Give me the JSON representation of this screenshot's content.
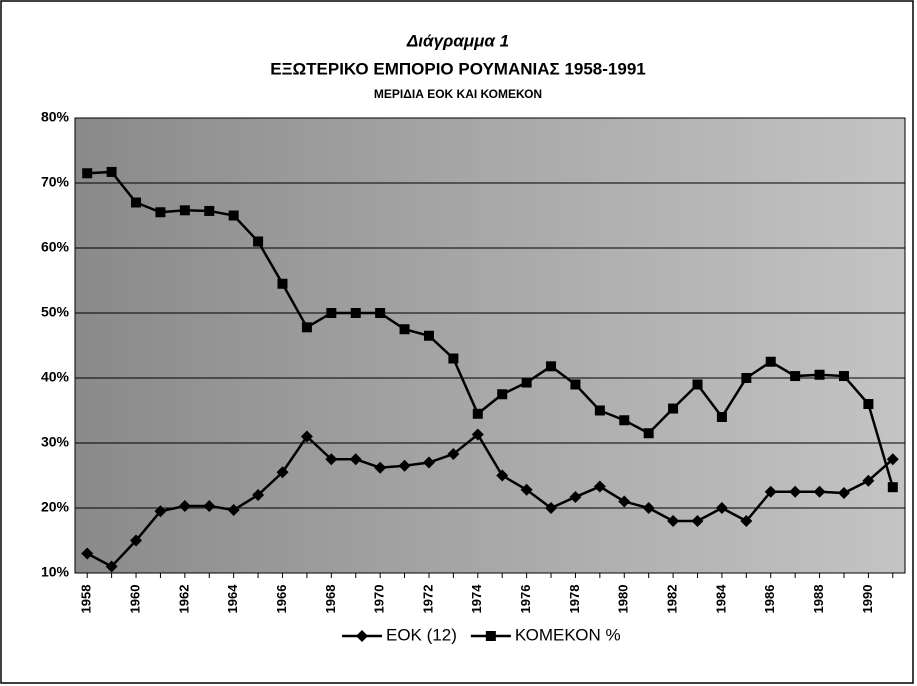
{
  "chart_data": {
    "type": "line",
    "title": "Διάγραμμα 1",
    "subtitle": "ΕΞΩΤΕΡΙΚΟ ΕΜΠΟΡΙΟ ΡΟΥΜΑΝΙΑΣ 1958-1991",
    "caption": "ΜΕΡΙΔΙΑ ΕΟΚ ΚΑΙ ΚΟΜΕΚΟΝ",
    "categories": [
      "1958",
      null,
      "1960",
      null,
      "1962",
      null,
      "1964",
      null,
      "1966",
      null,
      "1968",
      null,
      "1970",
      null,
      "1972",
      null,
      "1974",
      null,
      "1976",
      null,
      "1978",
      null,
      "1980",
      null,
      "1982",
      null,
      "1984",
      null,
      "1986",
      null,
      "1988",
      null,
      "1990",
      null
    ],
    "series": [
      {
        "name": "ΕΟΚ (12)",
        "color": "#000000",
        "marker": "diamond",
        "values": [
          13,
          11,
          15,
          19.5,
          20.3,
          20.3,
          19.7,
          22,
          25.5,
          31,
          27.5,
          27.5,
          26.2,
          26.5,
          27,
          28.3,
          31.3,
          25,
          22.8,
          20,
          21.7,
          23.3,
          21,
          20,
          18,
          18,
          20,
          18,
          22.5,
          22.5,
          22.5,
          22.3,
          24.2,
          27.5
        ]
      },
      {
        "name": "ΚΟΜΕΚΟΝ %",
        "color": "#000000",
        "marker": "square",
        "values": [
          71.5,
          71.7,
          67,
          65.5,
          65.8,
          65.7,
          65,
          61,
          54.5,
          47.8,
          50,
          50,
          50,
          47.5,
          46.5,
          43,
          34.5,
          37.5,
          39.3,
          41.8,
          39,
          35,
          33.5,
          31.5,
          35.3,
          39,
          34,
          40,
          42.5,
          40.3,
          40.5,
          40.3,
          36,
          23.2
        ]
      }
    ],
    "ylim": [
      10,
      80
    ],
    "yticks": [
      {
        "value": 10,
        "label": "10%"
      },
      {
        "value": 20,
        "label": "20%"
      },
      {
        "value": 30,
        "label": "30%"
      },
      {
        "value": 40,
        "label": "40%"
      },
      {
        "value": 50,
        "label": "50%"
      },
      {
        "value": 60,
        "label": "60%"
      },
      {
        "value": 70,
        "label": "70%"
      },
      {
        "value": 80,
        "label": "80%"
      }
    ],
    "grid": true,
    "legend": "bottom"
  }
}
